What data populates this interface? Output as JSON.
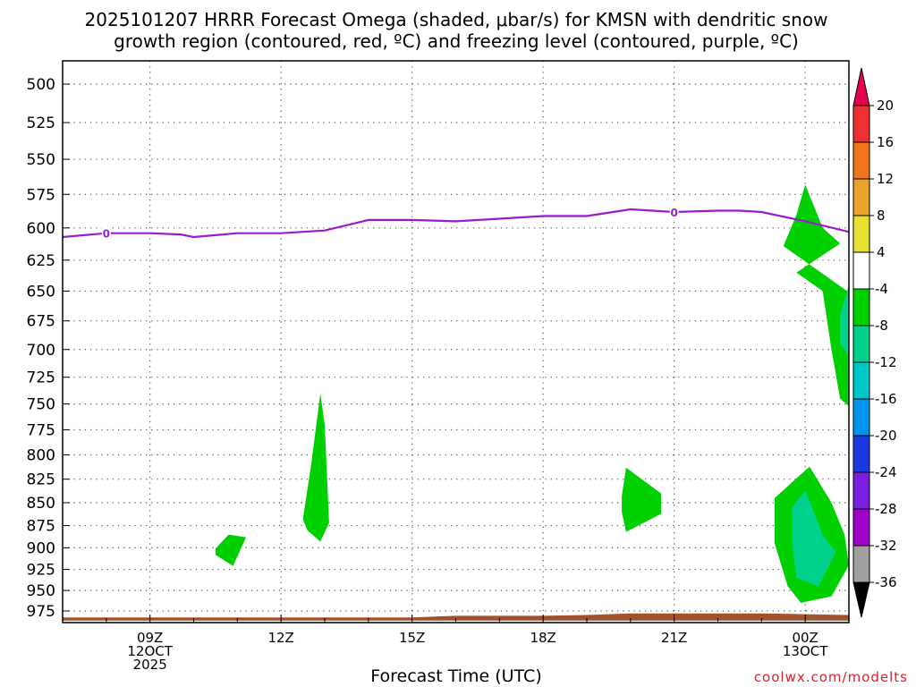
{
  "chart_data": {
    "type": "heatmap",
    "title_lines": [
      "2025101207 HRRR Forecast Omega (shaded, μbar/s) for KMSN with dendritic snow",
      "growth region (contoured, red, ºC) and freezing level (contoured, purple, ºC)"
    ],
    "xlabel": "Forecast Time (UTC)",
    "credit": "coolwx.com/modelts",
    "ylim": [
      500,
      987
    ],
    "y_ticks": [
      500,
      525,
      550,
      575,
      600,
      625,
      650,
      675,
      700,
      725,
      750,
      775,
      800,
      825,
      850,
      875,
      900,
      925,
      950,
      975
    ],
    "xlim": [
      7,
      25
    ],
    "x_ticks": [
      {
        "hour": 9,
        "lines": [
          "09Z",
          "12OCT",
          "2025"
        ]
      },
      {
        "hour": 12,
        "lines": [
          "12Z"
        ]
      },
      {
        "hour": 15,
        "lines": [
          "15Z"
        ]
      },
      {
        "hour": 18,
        "lines": [
          "18Z"
        ]
      },
      {
        "hour": 21,
        "lines": [
          "21Z"
        ]
      },
      {
        "hour": 24,
        "lines": [
          "00Z",
          "13OCT"
        ]
      }
    ],
    "grid": "dotted",
    "colorbar": {
      "labels": [
        "20",
        "16",
        "12",
        "8",
        "4",
        "-4",
        "-8",
        "-12",
        "-16",
        "-20",
        "-24",
        "-28",
        "-32",
        "-36"
      ],
      "colors": [
        "#e8004e",
        "#f03030",
        "#f0761e",
        "#e9a52b",
        "#e7e035",
        "#ffffff",
        "#00cf00",
        "#00d28e",
        "#00c8c8",
        "#0094f0",
        "#1a3ae0",
        "#7a1ee0",
        "#a000c8",
        "#a0a0a0"
      ]
    },
    "series": [
      {
        "kind": "freezing-level",
        "color": "#9a1ccf",
        "label": "0",
        "label_points": [
          {
            "x": 8,
            "y": 604
          },
          {
            "x": 21,
            "y": 588
          }
        ],
        "points": [
          [
            7,
            607
          ],
          [
            8,
            604
          ],
          [
            9,
            604
          ],
          [
            9.7,
            605
          ],
          [
            10,
            607
          ],
          [
            11,
            604
          ],
          [
            12,
            604
          ],
          [
            13,
            602
          ],
          [
            14,
            594
          ],
          [
            15,
            594
          ],
          [
            16,
            595
          ],
          [
            17,
            593
          ],
          [
            18,
            591
          ],
          [
            19,
            591
          ],
          [
            20,
            586
          ],
          [
            21,
            588
          ],
          [
            22,
            587
          ],
          [
            22.5,
            587
          ],
          [
            23,
            588
          ],
          [
            24,
            595
          ],
          [
            25,
            603
          ]
        ]
      }
    ],
    "shaded_regions": [
      {
        "level": "-4",
        "color": "#00cf00",
        "points": [
          [
            10.5,
            901
          ],
          [
            10.8,
            885
          ],
          [
            11.2,
            888
          ],
          [
            10.9,
            921
          ],
          [
            10.5,
            908
          ]
        ]
      },
      {
        "level": "-4",
        "color": "#00cf00",
        "points": [
          [
            12.5,
            868
          ],
          [
            12.7,
            807
          ],
          [
            12.9,
            740
          ],
          [
            13.0,
            770
          ],
          [
            13.1,
            872
          ],
          [
            12.9,
            893
          ],
          [
            12.6,
            880
          ]
        ]
      },
      {
        "level": "-4",
        "color": "#00cf00",
        "points": [
          [
            19.8,
            843
          ],
          [
            19.9,
            813
          ],
          [
            20.7,
            840
          ],
          [
            20.7,
            862
          ],
          [
            19.9,
            882
          ],
          [
            19.8,
            860
          ]
        ]
      },
      {
        "level": "-4",
        "color": "#00cf00",
        "points": [
          [
            23.5,
            614
          ],
          [
            23.8,
            590
          ],
          [
            24.0,
            568
          ],
          [
            24.4,
            600
          ],
          [
            24.8,
            612
          ],
          [
            23.8,
            635
          ],
          [
            24.4,
            650
          ],
          [
            24.6,
            700
          ],
          [
            24.8,
            745
          ],
          [
            25,
            752
          ],
          [
            25,
            651
          ]
        ]
      },
      {
        "level": "-4",
        "color": "#00cf00",
        "points": [
          [
            23.3,
            845
          ],
          [
            23.8,
            824
          ],
          [
            24.1,
            812
          ],
          [
            24.6,
            850
          ],
          [
            24.9,
            885
          ],
          [
            25,
            920
          ],
          [
            24.6,
            957
          ],
          [
            23.9,
            965
          ],
          [
            23.6,
            945
          ],
          [
            23.3,
            895
          ]
        ]
      },
      {
        "level": "-8",
        "color": "#00d28e",
        "points": [
          [
            24.8,
            670
          ],
          [
            25,
            645
          ],
          [
            25,
            705
          ],
          [
            24.8,
            695
          ]
        ]
      },
      {
        "level": "-8",
        "color": "#00d28e",
        "points": [
          [
            23.7,
            855
          ],
          [
            24.0,
            837
          ],
          [
            24.4,
            885
          ],
          [
            24.7,
            905
          ],
          [
            24.3,
            945
          ],
          [
            23.8,
            935
          ],
          [
            23.7,
            895
          ]
        ]
      }
    ],
    "terrain": {
      "color": "#a0522d",
      "top": [
        [
          7,
          983
        ],
        [
          15,
          983
        ],
        [
          16,
          981
        ],
        [
          17,
          981
        ],
        [
          18,
          981
        ],
        [
          19,
          980
        ],
        [
          20,
          978
        ],
        [
          21,
          978
        ],
        [
          22,
          978
        ],
        [
          23,
          978
        ],
        [
          24,
          979
        ],
        [
          25,
          980
        ]
      ],
      "bottom": 987
    }
  }
}
